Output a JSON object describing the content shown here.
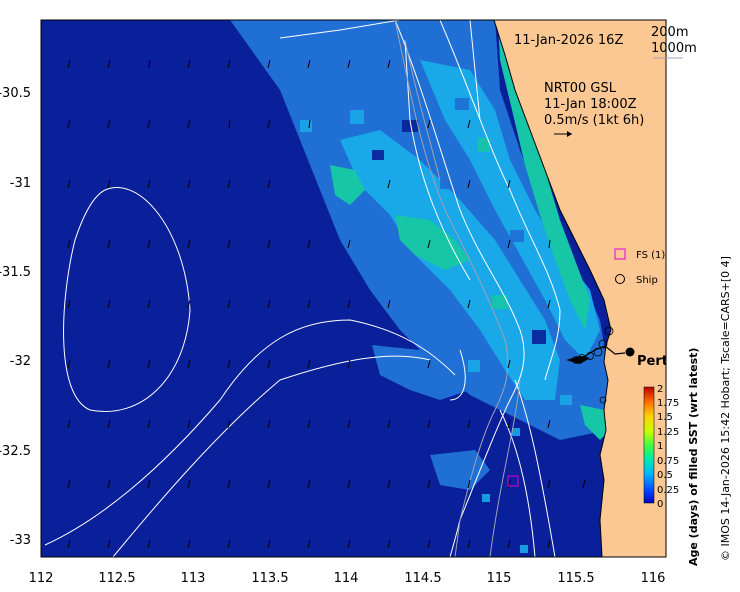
{
  "map": {
    "timestamp": "11-Jan-2026 16Z",
    "isobaths": [
      "200m",
      "1000m"
    ],
    "current_product": "NRT00 GSL",
    "current_time": "11-Jan 18:00Z",
    "vector_scale": "0.5m/s (1kt 6h)",
    "city_label": "Perth",
    "legend": {
      "fs_label": "FS (1)",
      "ship_label": "Ship"
    },
    "colorbar": {
      "title": "Age (days) of filled SST (wrt latest)",
      "ticks": [
        "2",
        "1.75",
        "1.5",
        "1.25",
        "1",
        "0.75",
        "0.5",
        "0.25",
        "0"
      ],
      "colors": [
        "#0000c8",
        "#0050ff",
        "#00b4ff",
        "#00e8b0",
        "#40ff40",
        "#c8ff00",
        "#ffd000",
        "#ff7000",
        "#c00000"
      ]
    },
    "credit": "© IMOS 14-Jan-2026 15:42 Hobart; Tscale=CARS+[0 4]",
    "x_ticks": [
      "112",
      "112.5",
      "113",
      "113.5",
      "114",
      "114.5",
      "115",
      "115.5",
      "116"
    ],
    "y_ticks": [
      "-30.5",
      "-31",
      "-31.5",
      "-32",
      "-32.5",
      "-33"
    ],
    "colors": {
      "ocean": "#0a1f9a",
      "land": "#fbc894",
      "medium_age": "#1f6fd4",
      "young_age": "#19a8e8",
      "newest": "#16c6a6"
    }
  }
}
